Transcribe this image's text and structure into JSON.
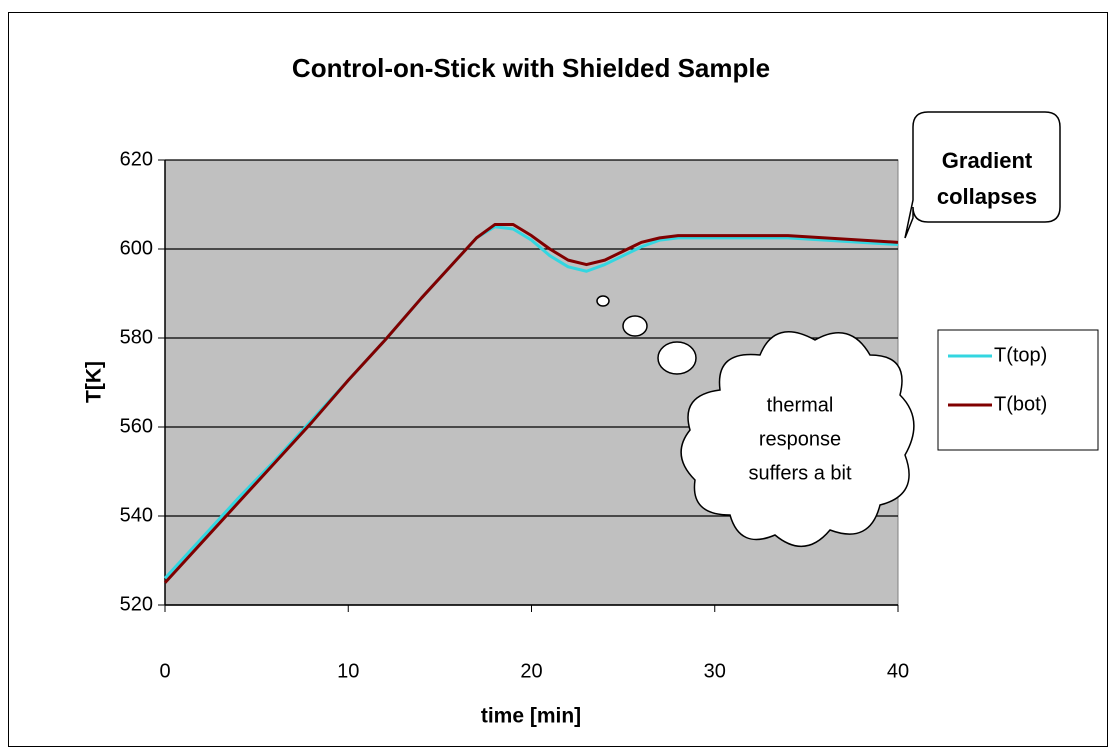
{
  "chart_data": {
    "type": "line",
    "title": "Control-on-Stick with Shielded Sample",
    "x_label": "time [min]",
    "y_label": "T[K]",
    "x": [
      0,
      2,
      4,
      6,
      8,
      10,
      12,
      14,
      16,
      17,
      18,
      19,
      20,
      21,
      22,
      23,
      24,
      25,
      26,
      27,
      28,
      30,
      32,
      34,
      36,
      38,
      40
    ],
    "series": [
      {
        "name": "T(top)",
        "color": "#33d6e0",
        "values": [
          526,
          535,
          544,
          552.5,
          561.5,
          570.5,
          579.5,
          589,
          598,
          602.5,
          605,
          604.5,
          602,
          598.5,
          596,
          595,
          596.5,
          598.5,
          600.5,
          602,
          602.5,
          602.5,
          602.5,
          602.5,
          602,
          601.5,
          601
        ]
      },
      {
        "name": "T(bot)",
        "color": "#800000",
        "values": [
          525,
          534,
          543,
          552,
          561,
          570.5,
          579.5,
          589,
          598,
          602.5,
          605.5,
          605.5,
          603,
          600,
          597.5,
          596.5,
          597.5,
          599.5,
          601.5,
          602.5,
          603,
          603,
          603,
          603,
          602.5,
          602,
          601.5
        ]
      }
    ],
    "xlim": [
      0,
      40
    ],
    "xticks": [
      0,
      10,
      20,
      30,
      40
    ],
    "ylim": [
      520,
      620
    ],
    "yticks": [
      520,
      540,
      560,
      580,
      600,
      620
    ],
    "grid": true,
    "legend": "right",
    "annotations": [
      {
        "lines": [
          "Gradient",
          "collapses"
        ]
      },
      {
        "lines": [
          "thermal",
          "response",
          "suffers a bit"
        ]
      }
    ]
  }
}
